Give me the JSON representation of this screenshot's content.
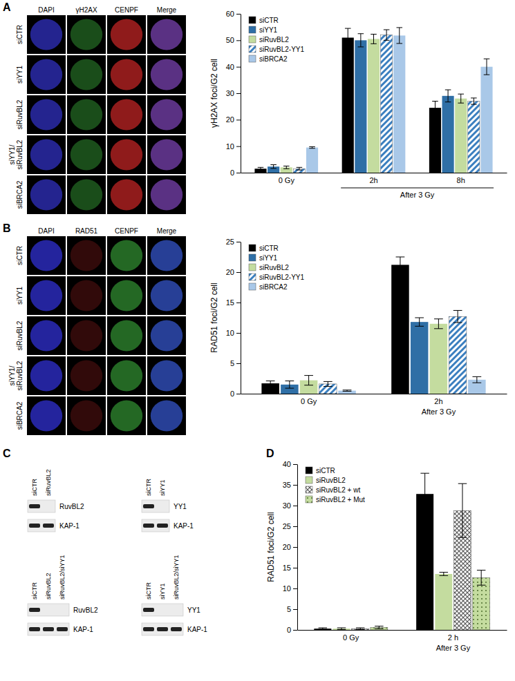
{
  "panels": {
    "A": {
      "letter": "A",
      "images": {
        "columns": [
          {
            "label": "DAPI",
            "color": "#2a2aa8"
          },
          {
            "label": "γH2AX",
            "color": "#1f5a1f"
          },
          {
            "label": "CENPF",
            "color": "#a82020"
          },
          {
            "label": "Merge",
            "color": "#6a3a9a"
          }
        ],
        "rows": [
          "siCTR",
          "siYY1",
          "siRuvBL2",
          "siYY1/ siRuvBL2",
          "siBRCA2"
        ]
      }
    },
    "B": {
      "letter": "B",
      "images": {
        "columns": [
          {
            "label": "DAPI",
            "color": "#2a2ab8"
          },
          {
            "label": "RAD51",
            "color": "#3a0c0c"
          },
          {
            "label": "CENPF",
            "color": "#2a7a2a"
          },
          {
            "label": "Merge",
            "color": "#2e4ab0"
          }
        ],
        "rows": [
          "siCTR",
          "siYY1",
          "siRuvBL2",
          "siYY1/ siRuvBL2",
          "siBRCA2"
        ]
      }
    },
    "C": {
      "letter": "C",
      "blots": [
        {
          "lanes": [
            "siCTR",
            "siRuvBL2"
          ],
          "bands": [
            {
              "label": "RuvBL2",
              "present": [
                true,
                false
              ]
            },
            {
              "label": "KAP-1",
              "present": [
                true,
                true
              ]
            }
          ]
        },
        {
          "lanes": [
            "siCTR",
            "siYY1"
          ],
          "bands": [
            {
              "label": "YY1",
              "present": [
                true,
                false
              ]
            },
            {
              "label": "KAP-1",
              "present": [
                true,
                true
              ]
            }
          ]
        },
        {
          "lanes": [
            "siCTR",
            "siRuvBL2",
            "siRuvBL2/siYY1"
          ],
          "bands": [
            {
              "label": "RuvBL2",
              "present": [
                true,
                false,
                false
              ]
            },
            {
              "label": "KAP-1",
              "present": [
                true,
                true,
                true
              ]
            }
          ]
        },
        {
          "lanes": [
            "siCTR",
            "siYY1",
            "siRuvBL2/siYY1"
          ],
          "bands": [
            {
              "label": "YY1",
              "present": [
                true,
                false,
                false
              ]
            },
            {
              "label": "KAP-1",
              "present": [
                true,
                true,
                true
              ]
            }
          ]
        }
      ]
    },
    "D": {
      "letter": "D"
    }
  },
  "chart_data": [
    {
      "type": "bar",
      "ylabel": "γH2AX foci/G2 cell",
      "categories": [
        "0 Gy",
        "2h",
        "8h"
      ],
      "ylim": [
        0,
        60
      ],
      "yticks": [
        0,
        10,
        20,
        30,
        40,
        50,
        60
      ],
      "legend": "upper left",
      "annotations": [
        {
          "text": "After 3 Gy",
          "categories": [
            "2h",
            "8h"
          ]
        }
      ],
      "series": [
        {
          "name": "siCTR",
          "color": "#000000",
          "values": [
            1.5,
            51,
            24.5
          ],
          "errors": [
            0.5,
            3.5,
            2.5
          ]
        },
        {
          "name": "siYY1",
          "color": "#2f6fa6",
          "values": [
            2.3,
            50,
            29
          ],
          "errors": [
            0.7,
            2.5,
            2.3
          ]
        },
        {
          "name": "siRuvBL2",
          "color": "#c4dc9f",
          "values": [
            2.0,
            50.5,
            28
          ],
          "errors": [
            0.5,
            1.8,
            1.7
          ]
        },
        {
          "name": "siRuvBL2-YY1",
          "color": "#3b7fbf",
          "marker": "hatch",
          "values": [
            1.5,
            52,
            27
          ],
          "errors": [
            0.5,
            2,
            1.2
          ]
        },
        {
          "name": "siBRCA2",
          "color": "#a9c8e8",
          "values": [
            9.5,
            51.8,
            40
          ],
          "errors": [
            0.3,
            3,
            3
          ]
        }
      ]
    },
    {
      "type": "bar",
      "ylabel": "RAD51 foci/G2 cell",
      "categories": [
        "0 Gy",
        "2h"
      ],
      "ylim": [
        0,
        25
      ],
      "yticks": [
        0,
        5,
        10,
        15,
        20,
        25
      ],
      "legend": "upper left",
      "annotations": [
        {
          "text": "After 3 Gy",
          "categories": [
            "2h"
          ]
        }
      ],
      "series": [
        {
          "name": "siCTR",
          "color": "#000000",
          "values": [
            1.7,
            21.2
          ],
          "errors": [
            0.4,
            1.3
          ]
        },
        {
          "name": "siYY1",
          "color": "#2f6fa6",
          "values": [
            1.5,
            11.8
          ],
          "errors": [
            0.6,
            0.7
          ]
        },
        {
          "name": "siRuvBL2",
          "color": "#c4dc9f",
          "values": [
            2.2,
            11.5
          ],
          "errors": [
            0.8,
            0.8
          ]
        },
        {
          "name": "siRuvBL2-YY1",
          "color": "#3b7fbf",
          "marker": "hatch",
          "values": [
            1.6,
            12.7
          ],
          "errors": [
            0.4,
            1.0
          ]
        },
        {
          "name": "siBRCA2",
          "color": "#a9c8e8",
          "values": [
            0.5,
            2.3
          ],
          "errors": [
            0.1,
            0.5
          ]
        }
      ]
    },
    {
      "type": "bar",
      "ylabel": "RAD51 foci/G2 cell",
      "categories": [
        "0 Gy",
        "2 h"
      ],
      "ylim": [
        0,
        40
      ],
      "yticks": [
        0,
        5,
        10,
        15,
        20,
        25,
        30,
        35,
        40
      ],
      "legend": "upper left",
      "annotations": [
        {
          "text": "After 3 Gy",
          "categories": [
            "2 h"
          ]
        }
      ],
      "series": [
        {
          "name": "siCTR",
          "color": "#000000",
          "values": [
            0.3,
            32.8
          ],
          "errors": [
            0.2,
            5
          ]
        },
        {
          "name": "siRuvBL2",
          "color": "#c4dc9f",
          "values": [
            0.3,
            13.5
          ],
          "errors": [
            0.2,
            0.4
          ]
        },
        {
          "name": "siRuvBL2 + wt",
          "color": "#595959",
          "marker": "crosshatch",
          "values": [
            0.3,
            28.8
          ],
          "errors": [
            0.2,
            6.5
          ]
        },
        {
          "name": "siRuvBL2 + Mut",
          "color": "#c4dc9f",
          "marker": "dots",
          "values": [
            0.6,
            12.6
          ],
          "errors": [
            0.3,
            1.8
          ]
        }
      ]
    }
  ]
}
